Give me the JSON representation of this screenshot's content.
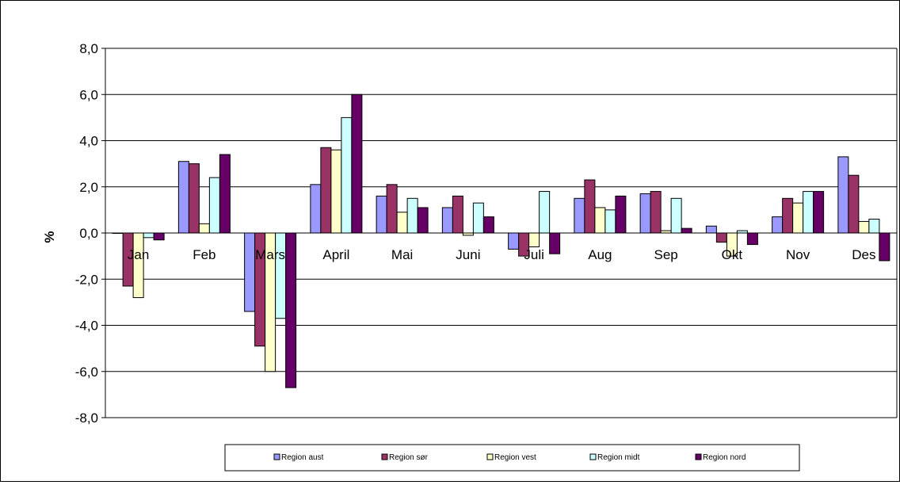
{
  "chart_data": {
    "type": "bar",
    "title": "",
    "xlabel": "",
    "ylabel": "%",
    "ylim": [
      -8,
      8
    ],
    "yticks": [
      "8,0",
      "6,0",
      "4,0",
      "2,0",
      "0,0",
      "-2,0",
      "-4,0",
      "-6,0",
      "-8,0"
    ],
    "ytick_values": [
      8,
      6,
      4,
      2,
      0,
      -2,
      -4,
      -6,
      -8
    ],
    "grid": true,
    "legend_position": "bottom",
    "categories": [
      "Jan",
      "Feb",
      "Mars",
      "April",
      "Mai",
      "Juni",
      "Juli",
      "Aug",
      "Sep",
      "Okt",
      "Nov",
      "Des"
    ],
    "series": [
      {
        "name": "Region aust",
        "color": "#9999ff",
        "values": [
          0.0,
          3.1,
          -3.4,
          2.1,
          1.6,
          1.1,
          -0.7,
          1.5,
          1.7,
          0.3,
          0.7,
          3.3
        ]
      },
      {
        "name": "Region sør",
        "color": "#993366",
        "values": [
          -2.3,
          3.0,
          -4.9,
          3.7,
          2.1,
          1.6,
          -1.0,
          2.3,
          1.8,
          -0.4,
          1.5,
          2.5
        ]
      },
      {
        "name": "Region vest",
        "color": "#ffffcc",
        "values": [
          -2.8,
          0.4,
          -6.0,
          3.6,
          0.9,
          -0.1,
          -0.6,
          1.1,
          0.1,
          -1.0,
          1.3,
          0.5
        ]
      },
      {
        "name": "Region midt",
        "color": "#ccffff",
        "values": [
          -0.2,
          2.4,
          -3.7,
          5.0,
          1.5,
          1.3,
          1.8,
          1.0,
          1.5,
          0.1,
          1.8,
          0.6
        ]
      },
      {
        "name": "Region nord",
        "color": "#660066",
        "values": [
          -0.3,
          3.4,
          -6.7,
          6.0,
          1.1,
          0.7,
          -0.9,
          1.6,
          0.2,
          -0.5,
          1.8,
          -1.2
        ]
      }
    ]
  }
}
